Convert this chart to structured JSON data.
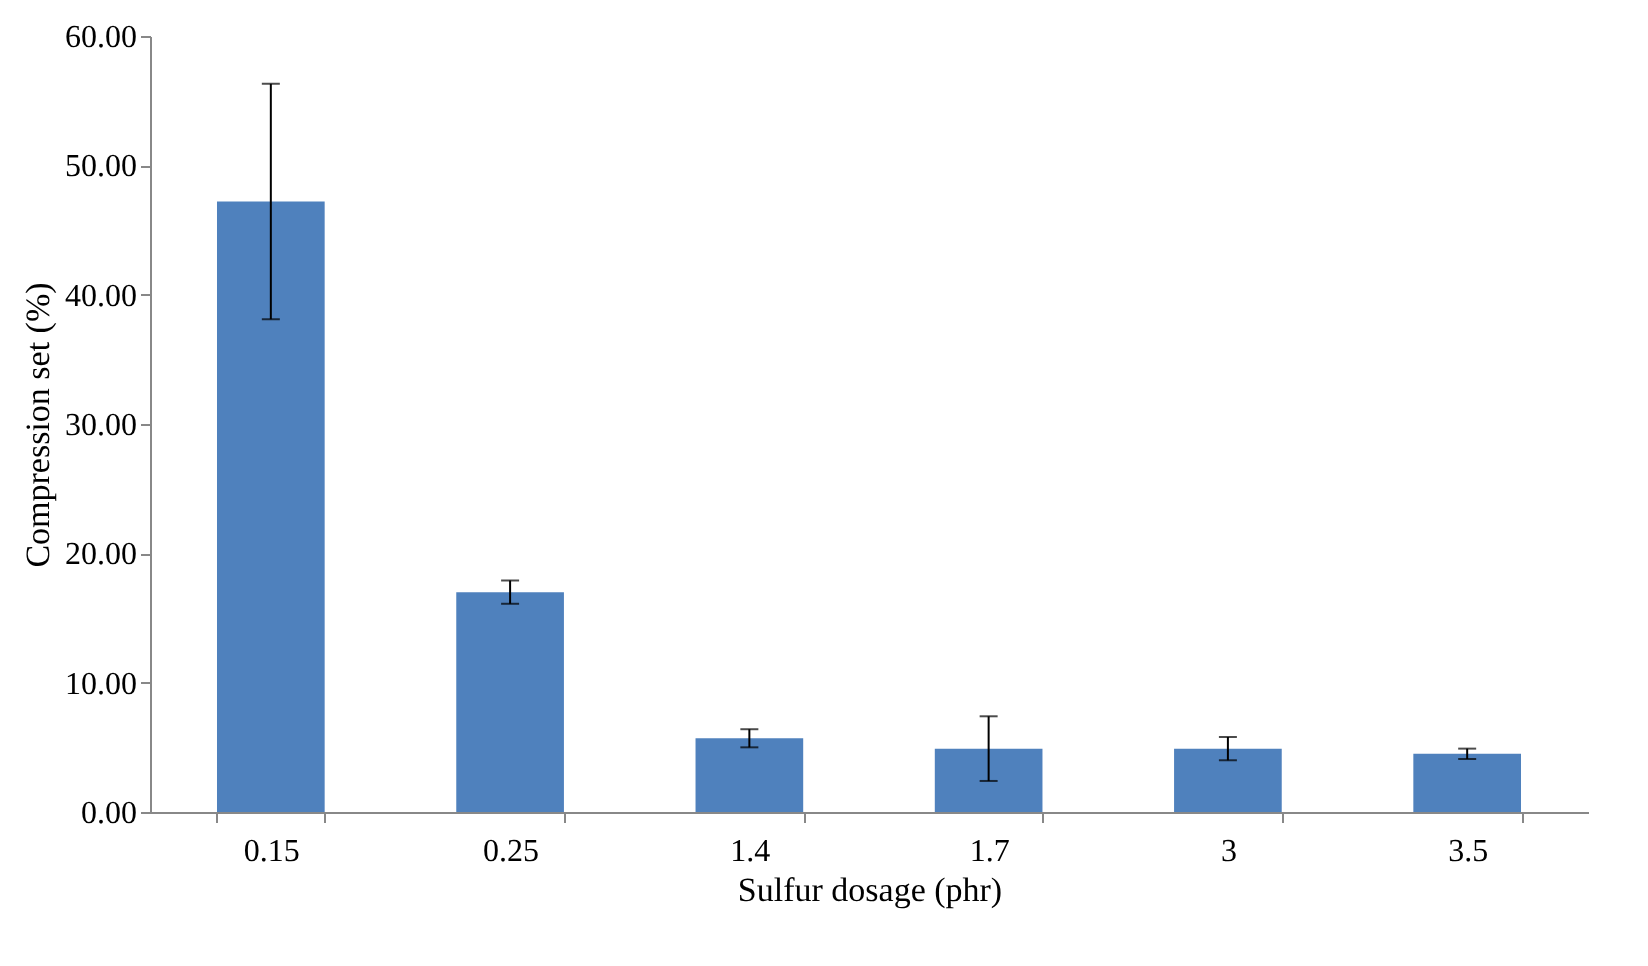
{
  "chart_data": {
    "type": "bar",
    "xlabel": "Sulfur dosage (phr)",
    "ylabel": "Compression set  (%)",
    "categories": [
      "0.15",
      "0.25",
      "1.4",
      "1.7",
      "3",
      "3.5"
    ],
    "values": [
      47.2,
      17.0,
      5.7,
      4.9,
      4.9,
      4.5
    ],
    "errors": [
      9.1,
      0.9,
      0.7,
      2.5,
      0.9,
      0.4
    ],
    "color": "#4f81bd",
    "ylim": [
      0,
      60
    ],
    "yticks": [
      {
        "value": 0,
        "label": "0.00"
      },
      {
        "value": 10,
        "label": "10.00"
      },
      {
        "value": 20,
        "label": "20.00"
      },
      {
        "value": 30,
        "label": "30.00"
      },
      {
        "value": 40,
        "label": "40.00"
      },
      {
        "value": 50,
        "label": "50.00"
      },
      {
        "value": 60,
        "label": "60.00"
      }
    ],
    "grid": false
  }
}
